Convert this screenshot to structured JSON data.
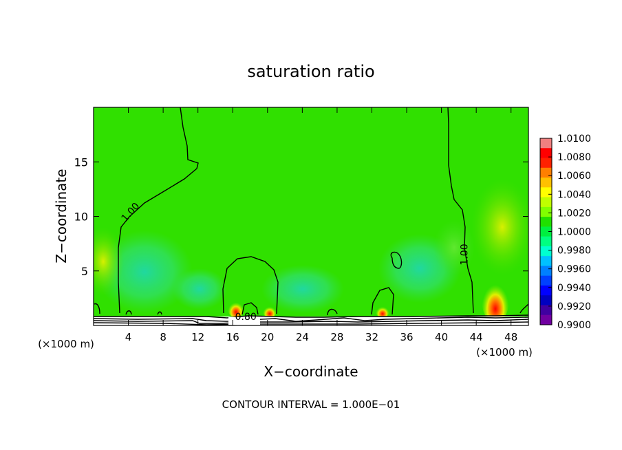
{
  "chart_data": {
    "type": "heatmap",
    "title": "saturation ratio",
    "xlabel": "X−coordinate",
    "ylabel": "Z−coordinate",
    "x_unit_left": "(×1000 m)",
    "x_unit_right": "(×1000 m)",
    "xlim": [
      0,
      50
    ],
    "ylim": [
      0,
      20
    ],
    "x_ticks": [
      4,
      8,
      12,
      16,
      20,
      24,
      28,
      32,
      36,
      40,
      44,
      48
    ],
    "y_ticks": [
      5,
      10,
      15
    ],
    "footer": "CONTOUR INTERVAL = 1.000E−01",
    "contour_labels": [
      {
        "text": "1.00",
        "x": 4.5,
        "z": 10.2
      },
      {
        "text": "1.00",
        "x": 43.0,
        "z": 6.5
      },
      {
        "text": "0.80",
        "x": 17.5,
        "z": 0.5
      }
    ],
    "colorbar": {
      "labels": [
        "1.0100",
        "1.0080",
        "1.0060",
        "1.0040",
        "1.0020",
        "1.0000",
        "0.9980",
        "0.9960",
        "0.9940",
        "0.9920",
        "0.9900"
      ],
      "colors": [
        "#f08080",
        "#ff0000",
        "#ff2000",
        "#ff7f00",
        "#ffc000",
        "#ffff00",
        "#c0ff00",
        "#80ff00",
        "#20e000",
        "#00f040",
        "#00ff80",
        "#00ffd0",
        "#00c0ff",
        "#0080ff",
        "#0040ff",
        "#0000ff",
        "#0000c0",
        "#4000a0",
        "#7000a0"
      ]
    }
  }
}
